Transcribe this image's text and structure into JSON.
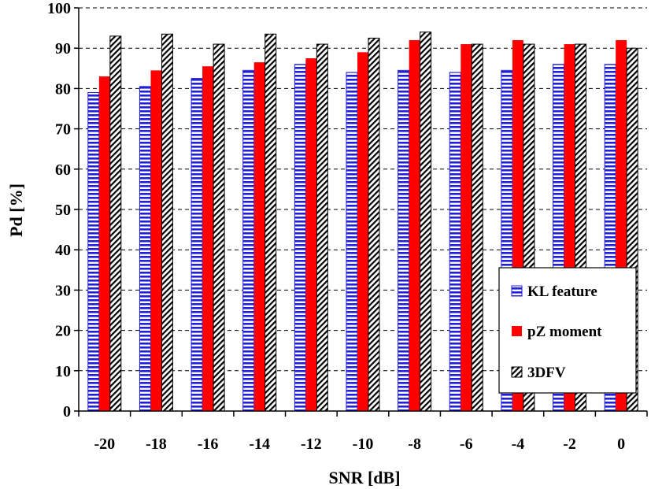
{
  "chart_data": {
    "type": "bar",
    "title": "",
    "xlabel": "SNR [dB]",
    "ylabel": "Pd [%]",
    "ylim": [
      0,
      100
    ],
    "ytick_step": 10,
    "grid": "horizontal-dashed",
    "legend_position": "bottom-right",
    "categories": [
      "-20",
      "-18",
      "-16",
      "-14",
      "-12",
      "-10",
      "-8",
      "-6",
      "-4",
      "-2",
      "0"
    ],
    "series": [
      {
        "name": "KL feature",
        "color": "#1f1fe0",
        "pattern": "horizontal-stripes",
        "values": [
          79,
          80.5,
          82.5,
          84.5,
          86,
          84,
          84.5,
          84,
          84.5,
          86,
          86
        ]
      },
      {
        "name": "pZ moment",
        "color": "#ff0000",
        "pattern": "solid",
        "values": [
          83,
          84.5,
          85.5,
          86.5,
          87.5,
          89,
          92,
          91,
          92,
          91,
          92
        ]
      },
      {
        "name": "3DFV",
        "color": "#000000",
        "pattern": "diagonal-hatch",
        "values": [
          93,
          93.5,
          91,
          93.5,
          91,
          92.5,
          94,
          91,
          91,
          91,
          90
        ]
      }
    ]
  }
}
